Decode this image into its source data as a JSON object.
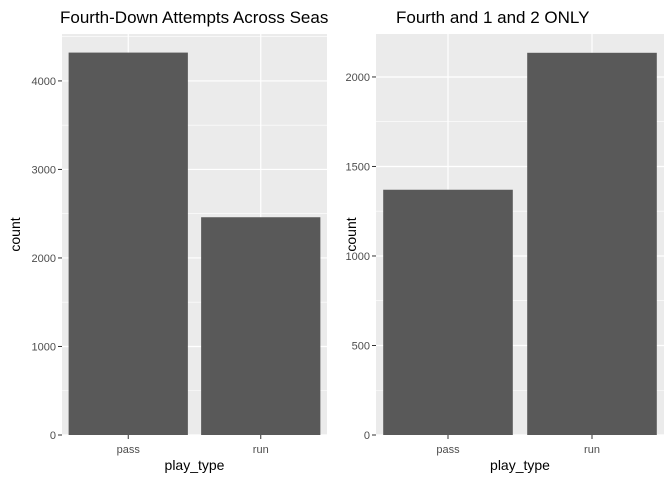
{
  "chart_data": [
    {
      "type": "bar",
      "title": "Fourth-Down Attempts Across Seas",
      "xlabel": "play_type",
      "ylabel": "count",
      "categories": [
        "pass",
        "run"
      ],
      "values": [
        4320,
        2460
      ],
      "ylim": [
        0,
        4530
      ],
      "yticks": [
        0,
        1000,
        2000,
        3000,
        4000
      ],
      "grid": true,
      "bar_color": "#595959",
      "panel_bg": "#ebebeb"
    },
    {
      "type": "bar",
      "title": "Fourth and 1 and 2 ONLY",
      "xlabel": "play_type",
      "ylabel": "count",
      "categories": [
        "pass",
        "run"
      ],
      "values": [
        1370,
        2135
      ],
      "ylim": [
        0,
        2240
      ],
      "yticks": [
        0,
        500,
        1000,
        1500,
        2000
      ],
      "grid": true,
      "bar_color": "#595959",
      "panel_bg": "#ebebeb"
    }
  ]
}
